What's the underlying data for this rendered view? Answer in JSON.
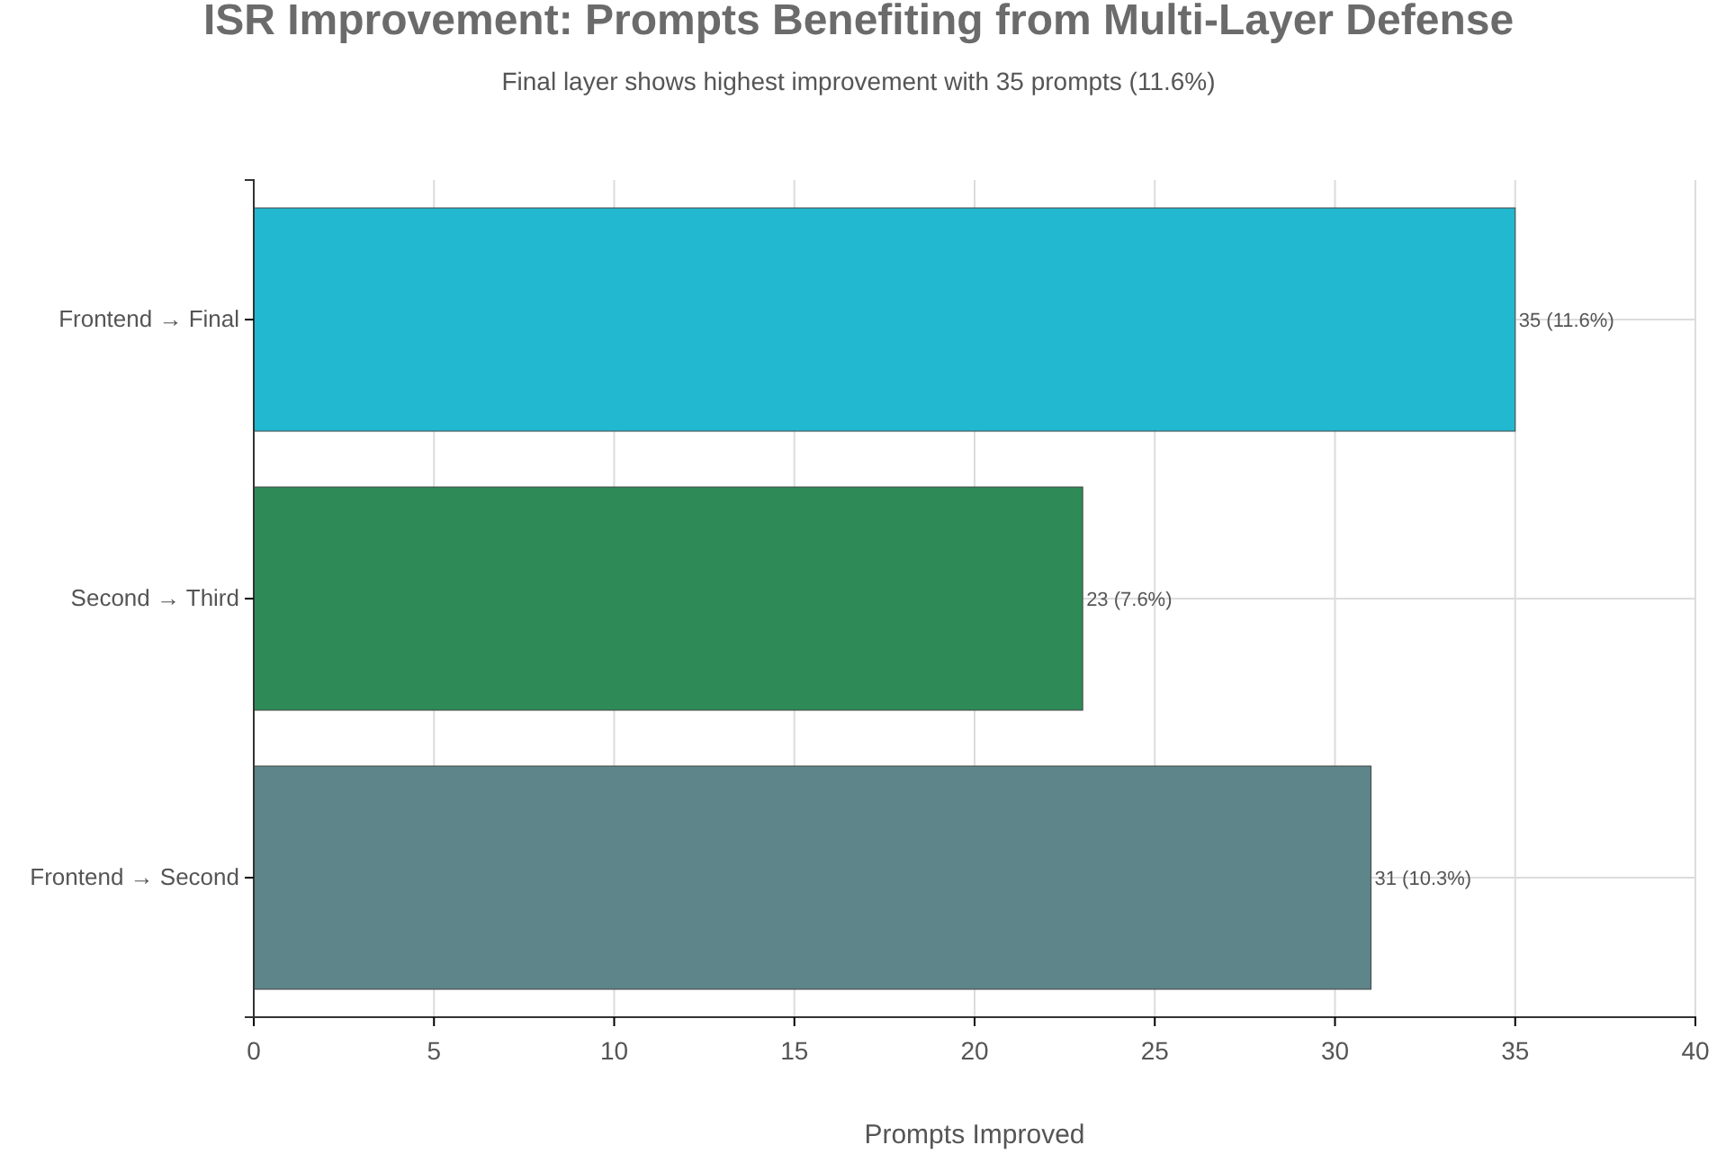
{
  "chart_data": {
    "type": "bar",
    "orientation": "horizontal",
    "title": "ISR Improvement: Prompts Benefiting from Multi-Layer Defense",
    "subtitle": "Final layer shows highest improvement with 35 prompts (11.6%)",
    "xlabel": "Prompts Improved",
    "categories": [
      "Frontend → Final",
      "Second → Third",
      "Frontend → Second"
    ],
    "values": [
      35,
      23,
      31
    ],
    "colors": [
      "#22b8cf",
      "#2e8b57",
      "#5e8589"
    ],
    "value_labels": [
      "35 (11.6%)",
      "23 (7.6%)",
      "31 (10.3%)"
    ],
    "xlim": [
      0,
      40
    ],
    "xticks": [
      0,
      5,
      10,
      15,
      20,
      25,
      30,
      35,
      40
    ],
    "grid": true
  }
}
